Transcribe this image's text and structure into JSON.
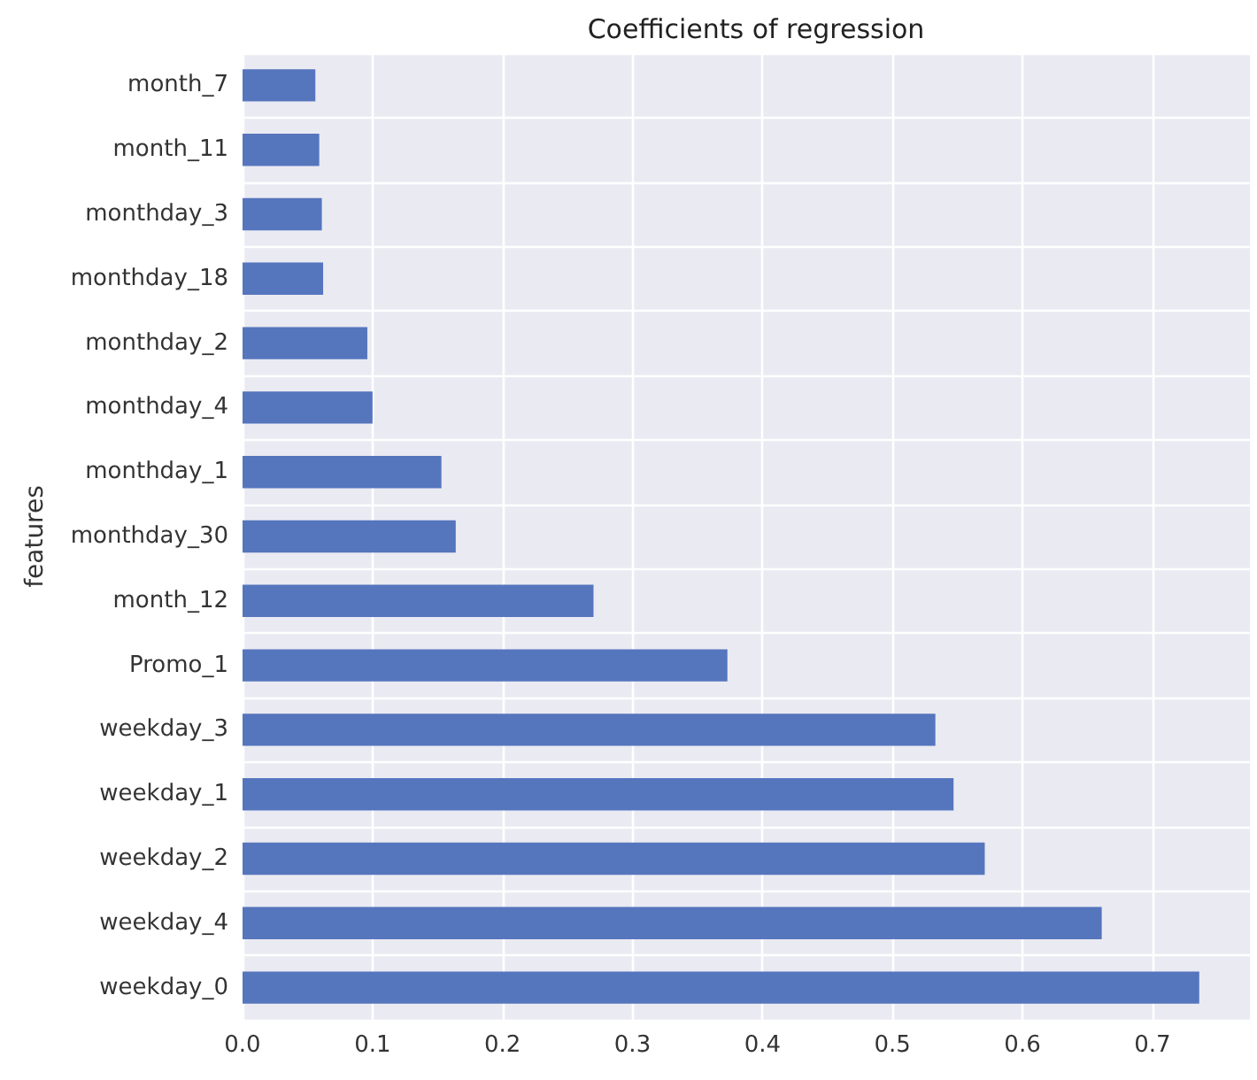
{
  "chart_data": {
    "type": "bar",
    "orientation": "horizontal",
    "title": "Coefficients of regression",
    "ylabel": "features",
    "categories": [
      "month_7",
      "month_11",
      "monthday_3",
      "monthday_18",
      "monthday_2",
      "monthday_4",
      "monthday_1",
      "monthday_30",
      "month_12",
      "Promo_1",
      "weekday_3",
      "weekday_1",
      "weekday_2",
      "weekday_4",
      "weekday_0"
    ],
    "values": [
      0.056,
      0.059,
      0.061,
      0.062,
      0.096,
      0.1,
      0.153,
      0.164,
      0.27,
      0.373,
      0.533,
      0.547,
      0.571,
      0.661,
      0.736
    ],
    "color": "#5575bd",
    "xlim": [
      0,
      0.775
    ],
    "xticks": [
      {
        "value": 0,
        "label": "0.0"
      },
      0.1,
      0.2,
      0.3,
      0.4,
      0.5,
      0.6,
      0.7
    ],
    "grid": true
  }
}
